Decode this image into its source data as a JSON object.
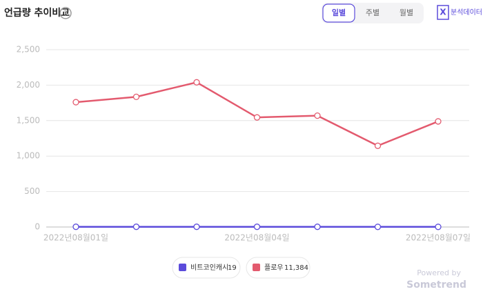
{
  "header": {
    "title": "언급량 추이비교",
    "help": "?",
    "tabs": [
      "일별",
      "주별",
      "월별"
    ],
    "active_tab": 0,
    "export": "분석데이터"
  },
  "chart_data": {
    "type": "line",
    "categories": [
      "2022년08월01일",
      null,
      null,
      "2022년08월04일",
      null,
      null,
      "2022년08월07일"
    ],
    "series": [
      {
        "name": "비트코인캐시",
        "color": "#5b4bdb",
        "values": [
          3,
          3,
          3,
          3,
          3,
          2,
          2
        ],
        "total": 19
      },
      {
        "name": "플로우",
        "color": "#e35a6e",
        "values": [
          1760,
          1835,
          2040,
          1545,
          1570,
          1145,
          1489
        ],
        "total": {
          "value": 11384,
          "label": "11,384"
        }
      }
    ],
    "ylim": [
      0,
      2500
    ],
    "yticks": [
      0,
      500,
      {
        "value": 1000,
        "label": "1,000"
      },
      {
        "value": 1500,
        "label": "1,500"
      },
      {
        "value": 2000,
        "label": "2,000"
      },
      {
        "value": 2500,
        "label": "2,500"
      }
    ],
    "grid": true
  },
  "footer": {
    "powered": "Powered by",
    "brand": "Sometrend"
  }
}
